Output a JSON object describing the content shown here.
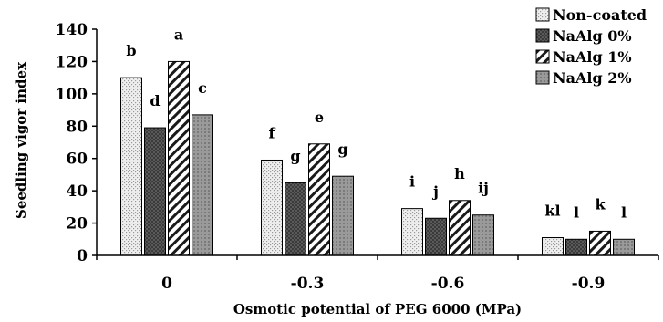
{
  "chart_data": {
    "type": "bar",
    "title": "",
    "xlabel": "Osmotic potential of PEG 6000 (MPa)",
    "ylabel": "Seedling vigor index",
    "categories": [
      "0",
      "-0.3",
      "-0.6",
      "-0.9"
    ],
    "ylim": [
      0,
      140
    ],
    "yticks": [
      "0",
      "20",
      "40",
      "60",
      "80",
      "100",
      "120",
      "140"
    ],
    "legend_position": "top-right",
    "series": [
      {
        "name": "Non-coated",
        "values": [
          110,
          59,
          29,
          11
        ],
        "letters": [
          "b",
          "f",
          "i",
          "kl"
        ],
        "pattern": "dots",
        "color": "#e4e4e4"
      },
      {
        "name": "NaAlg 0%",
        "values": [
          79,
          45,
          23,
          10
        ],
        "letters": [
          "d",
          "g",
          "j",
          "l"
        ],
        "pattern": "dark",
        "color": "#4a4a4a"
      },
      {
        "name": "NaAlg 1%",
        "values": [
          120,
          69,
          34,
          15
        ],
        "letters": [
          "a",
          "e",
          "h",
          "k"
        ],
        "pattern": "hatch",
        "color": "#1a1a1a"
      },
      {
        "name": "NaAlg 2%",
        "values": [
          87,
          49,
          25,
          10
        ],
        "letters": [
          "c",
          "g",
          "ij",
          "l"
        ],
        "pattern": "grid",
        "color": "#8c8c8c"
      }
    ]
  }
}
